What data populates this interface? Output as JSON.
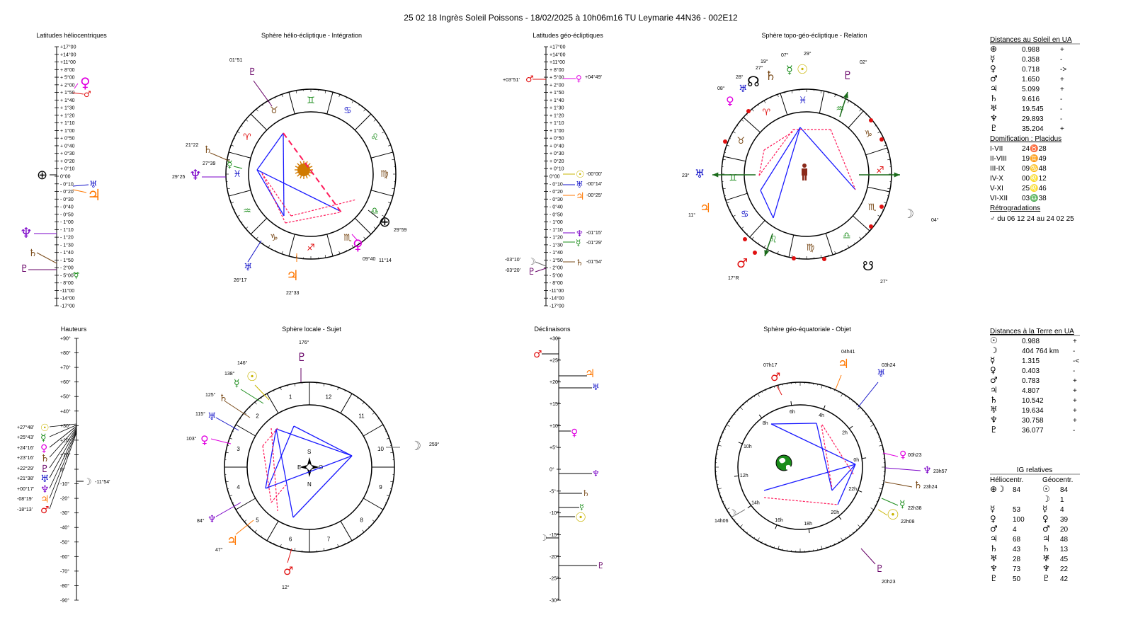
{
  "title": "25 02 18 Ingrès Soleil Poissons   -  18/02/2025 à 10h06m16 TU  Leymarie  44N36 - 002E12",
  "colors": {
    "sun": "#c8b400",
    "moon": "#666666",
    "mercury": "#1a8c1a",
    "venus": "#e000e0",
    "mars": "#e01010",
    "jupiter": "#ff7700",
    "saturn": "#7a4b1a",
    "uranus": "#1010c8",
    "neptune": "#7a00c8",
    "pluto": "#660066",
    "earth": "#000000",
    "aspect_blue": "#1a1aff",
    "aspect_red": "#ff1a5a"
  },
  "panels": {
    "helio_lat": {
      "title": "Latitudes héliocentriques",
      "ticks": [
        "+17°00",
        "+14°00",
        "+11°00",
        "+ 8°00",
        "+ 5°00",
        "+ 2°00",
        "+ 1°50",
        "+ 1°40",
        "+ 1°30",
        "+ 1°20",
        "+ 1°10",
        "+ 1°00",
        "+ 0°50",
        "+ 0°40",
        "+ 0°30",
        "+ 0°20",
        "+ 0°10",
        "0°00",
        "- 0°10",
        "- 0°20",
        "- 0°30",
        "- 0°40",
        "- 0°50",
        "- 1°00",
        "- 1°10",
        "- 1°20",
        "- 1°30",
        "- 1°40",
        "- 1°50",
        "- 2°00",
        "- 5°00",
        "- 8°00",
        "-11°00",
        "-14°00",
        "-17°00"
      ]
    },
    "helio_sphere": {
      "title": "Sphère hélio-écliptique - Intégration",
      "labels": [
        "01°51",
        "21°22",
        "27°39",
        "29°25",
        "26°17",
        "22°33",
        "09°40",
        "11°14",
        "29°59"
      ]
    },
    "geo_lat": {
      "title": "Latitudes géo-écliptiques",
      "ticks": [
        "+17°00",
        "+14°00",
        "+11°00",
        "+ 8°00",
        "+ 5°00",
        "+ 2°00",
        "+ 1°50",
        "+ 1°40",
        "+ 1°30",
        "+ 1°20",
        "+ 1°10",
        "+ 1°00",
        "+ 0°50",
        "+ 0°40",
        "+ 0°30",
        "+ 0°20",
        "+ 0°10",
        "0°00",
        "- 0°10",
        "- 0°20",
        "- 0°30",
        "- 0°40",
        "- 0°50",
        "- 1°00",
        "- 1°10",
        "- 1°20",
        "- 1°30",
        "- 1°40",
        "- 1°50",
        "- 2°00",
        "- 5°00",
        "- 8°00",
        "-11°00",
        "-14°00",
        "-17°00"
      ],
      "labels_left": [
        "+03°51'",
        "-03°10'",
        "-03°20'"
      ],
      "labels_right": [
        "+04°49'",
        "-00°00'",
        "-00°14'",
        "-00°25'",
        "-01°15'",
        "-01°29'",
        "-01°54'"
      ]
    },
    "topo_sphere": {
      "title": "Sphère topo-géo-écliptique - Relation",
      "labels": [
        "19°",
        "07°",
        "29°",
        "27°",
        "28°",
        "08°",
        "02°",
        "23°",
        "11°",
        "04°",
        "17°R",
        "27°"
      ]
    },
    "heights": {
      "title": "Hauteurs",
      "ticks": [
        "+90°",
        "+80°",
        "+70°",
        "+60°",
        "+50°",
        "+40°",
        "+30°",
        "+20°",
        "+10°",
        "0°",
        "-10°",
        "-20°",
        "-30°",
        "-40°",
        "-50°",
        "-60°",
        "-70°",
        "-80°",
        "-90°"
      ],
      "labels": [
        "+27°48'",
        "+25°43'",
        "+24°16'",
        "+23°16'",
        "+22°29'",
        "+21°38'",
        "+00°17'",
        "-08°19'",
        "-18°13'",
        "-11°54'"
      ]
    },
    "local_sphere": {
      "title": "Sphère locale - Sujet",
      "labels": [
        "176°",
        "146°",
        "138°",
        "125°",
        "115°",
        "103°",
        "84°",
        "47°",
        "12°",
        "259°"
      ],
      "houses": [
        "10",
        "9",
        "8",
        "7",
        "6",
        "5",
        "4",
        "3",
        "2",
        "1",
        "12",
        "11"
      ],
      "compass": [
        "S",
        "E",
        "O",
        "N"
      ]
    },
    "declinations": {
      "title": "Déclinaisons",
      "ticks": [
        "+30°",
        "+25°",
        "+20°",
        "+15°",
        "+10°",
        "+5°",
        "0°",
        "-5°",
        "-10°",
        "-15°",
        "-20°",
        "-25°",
        "-30°"
      ]
    },
    "equatorial": {
      "title": "Sphère géo-équatoriale - Objet",
      "labels": [
        "07h17",
        "04h41",
        "03h24",
        "00h23",
        "23h57",
        "23h24",
        "22h38",
        "22h08",
        "20h23",
        "14h06"
      ],
      "hours": [
        "6h",
        "4h",
        "2h",
        "0h",
        "22h",
        "20h",
        "18h",
        "16h",
        "14h",
        "12h",
        "10h",
        "8h"
      ]
    }
  },
  "side_top": {
    "heading": "Distances au Soleil en UA",
    "rows": [
      {
        "sym": "⊕",
        "val": "0.988",
        "sign": "+"
      },
      {
        "sym": "☿",
        "val": "0.358",
        "sign": "-"
      },
      {
        "sym": "♀",
        "val": "0.718",
        "sign": "->"
      },
      {
        "sym": "♂",
        "val": "1.650",
        "sign": "+"
      },
      {
        "sym": "♃",
        "val": "5.099",
        "sign": "+"
      },
      {
        "sym": "♄",
        "val": "9.616",
        "sign": "-"
      },
      {
        "sym": "♅",
        "val": "19.545",
        "sign": "-"
      },
      {
        "sym": "♆",
        "val": "29.893",
        "sign": "-"
      },
      {
        "sym": "♇",
        "val": "35.204",
        "sign": "+"
      }
    ],
    "domif_heading": "Domification : Placidus",
    "domif": [
      {
        "k": "I-VII",
        "v": "24♉28"
      },
      {
        "k": "II-VIII",
        "v": "19♊49"
      },
      {
        "k": "III-IX",
        "v": "09♋48"
      },
      {
        "k": "IV-X",
        "v": "00♌12"
      },
      {
        "k": "V-XI",
        "v": "25♌46"
      },
      {
        "k": "VI-XII",
        "v": "03♎38"
      }
    ],
    "retro_heading": "Rétrogradations",
    "retro": "♂  du 06 12 24 au 24 02 25"
  },
  "side_bottom": {
    "heading": "Distances à la Terre en UA",
    "rows": [
      {
        "sym": "☉",
        "val": "0.988",
        "sign": "+"
      },
      {
        "sym": "☽",
        "val": "404 764 km",
        "sign": "-"
      },
      {
        "sym": "☿",
        "val": "1.315",
        "sign": "-<"
      },
      {
        "sym": "♀",
        "val": "0.403",
        "sign": "-"
      },
      {
        "sym": "♂",
        "val": "0.783",
        "sign": "+"
      },
      {
        "sym": "♃",
        "val": "4.807",
        "sign": "+"
      },
      {
        "sym": "♄",
        "val": "10.542",
        "sign": "+"
      },
      {
        "sym": "♅",
        "val": "19.634",
        "sign": "+"
      },
      {
        "sym": "♆",
        "val": "30.758",
        "sign": "+"
      },
      {
        "sym": "♇",
        "val": "36.077",
        "sign": "-"
      }
    ],
    "ig_heading": "IG relatives",
    "ig_cols": [
      "Héliocentr.",
      "Géocentr."
    ],
    "ig_rows": [
      {
        "hs": "⊕☽",
        "hv": "84",
        "gs": "☉",
        "gv": "84"
      },
      {
        "hs": "",
        "hv": "",
        "gs": "☽",
        "gv": "1"
      },
      {
        "hs": "☿",
        "hv": "53",
        "gs": "☿",
        "gv": "4"
      },
      {
        "hs": "♀",
        "hv": "100",
        "gs": "♀",
        "gv": "39"
      },
      {
        "hs": "♂",
        "hv": "4",
        "gs": "♂",
        "gv": "20"
      },
      {
        "hs": "♃",
        "hv": "68",
        "gs": "♃",
        "gv": "48"
      },
      {
        "hs": "♄",
        "hv": "43",
        "gs": "♄",
        "gv": "13"
      },
      {
        "hs": "♅",
        "hv": "28",
        "gs": "♅",
        "gv": "45"
      },
      {
        "hs": "♆",
        "hv": "73",
        "gs": "♆",
        "gv": "22"
      },
      {
        "hs": "♇",
        "hv": "50",
        "gs": "♇",
        "gv": "42"
      }
    ]
  }
}
